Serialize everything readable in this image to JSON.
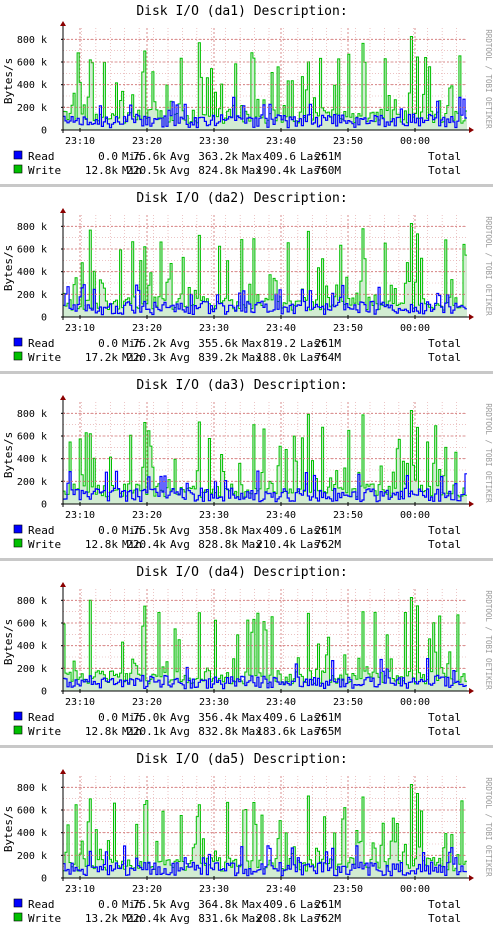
{
  "watermark": "RRDTOOL / TOBI OETIKER",
  "colors": {
    "read": "#0000ff",
    "write": "#00c000",
    "write_fill": "#d2ecd2",
    "grid_minor": "#e0a0a0",
    "grid_major": "#d07070",
    "axis": "#000000",
    "arrow": "#8b0000"
  },
  "chart_data": [
    {
      "type": "area",
      "title": "Disk I/O (da1) Description:",
      "ylabel": "Bytes/s",
      "ylim": [
        0,
        900000
      ],
      "yticks": [
        0,
        200000,
        400000,
        600000,
        800000
      ],
      "ytick_labels": [
        "0",
        "200 k",
        "400 k",
        "600 k",
        "800 k"
      ],
      "xtick_labels": [
        "23:10",
        "23:20",
        "23:30",
        "23:40",
        "23:50",
        "00:00"
      ],
      "series": [
        {
          "name": "Read",
          "legend": [
            "0.0",
            "Min",
            "75.6k",
            "Avg",
            "363.2k",
            "Max",
            "409.6",
            "Last",
            "261M",
            "Total"
          ]
        },
        {
          "name": "Write",
          "legend": [
            "12.8k",
            "Min",
            "220.5k",
            "Avg",
            "824.8k",
            "Max",
            "190.4k",
            "Last",
            "760M",
            "Total"
          ]
        }
      ]
    },
    {
      "type": "area",
      "title": "Disk I/O (da2) Description:",
      "ylabel": "Bytes/s",
      "ylim": [
        0,
        900000
      ],
      "yticks": [
        0,
        200000,
        400000,
        600000,
        800000
      ],
      "ytick_labels": [
        "0",
        "200 k",
        "400 k",
        "600 k",
        "800 k"
      ],
      "xtick_labels": [
        "23:10",
        "23:20",
        "23:30",
        "23:40",
        "23:50",
        "00:00"
      ],
      "series": [
        {
          "name": "Read",
          "legend": [
            "0.0",
            "Min",
            "75.2k",
            "Avg",
            "355.6k",
            "Max",
            "819.2",
            "Last",
            "261M",
            "Total"
          ]
        },
        {
          "name": "Write",
          "legend": [
            "17.2k",
            "Min",
            "220.3k",
            "Avg",
            "839.2k",
            "Max",
            "188.0k",
            "Last",
            "764M",
            "Total"
          ]
        }
      ]
    },
    {
      "type": "area",
      "title": "Disk I/O (da3) Description:",
      "ylabel": "Bytes/s",
      "ylim": [
        0,
        900000
      ],
      "yticks": [
        0,
        200000,
        400000,
        600000,
        800000
      ],
      "ytick_labels": [
        "0",
        "200 k",
        "400 k",
        "600 k",
        "800 k"
      ],
      "xtick_labels": [
        "23:10",
        "23:20",
        "23:30",
        "23:40",
        "23:50",
        "00:00"
      ],
      "series": [
        {
          "name": "Read",
          "legend": [
            "0.0",
            "Min",
            "75.5k",
            "Avg",
            "358.8k",
            "Max",
            "409.6",
            "Last",
            "261M",
            "Total"
          ]
        },
        {
          "name": "Write",
          "legend": [
            "12.8k",
            "Min",
            "220.4k",
            "Avg",
            "828.8k",
            "Max",
            "210.4k",
            "Last",
            "762M",
            "Total"
          ]
        }
      ]
    },
    {
      "type": "area",
      "title": "Disk I/O (da4) Description:",
      "ylabel": "Bytes/s",
      "ylim": [
        0,
        900000
      ],
      "yticks": [
        0,
        200000,
        400000,
        600000,
        800000
      ],
      "ytick_labels": [
        "0",
        "200 k",
        "400 k",
        "600 k",
        "800 k"
      ],
      "xtick_labels": [
        "23:10",
        "23:20",
        "23:30",
        "23:40",
        "23:50",
        "00:00"
      ],
      "series": [
        {
          "name": "Read",
          "legend": [
            "0.0",
            "Min",
            "75.0k",
            "Avg",
            "356.4k",
            "Max",
            "409.6",
            "Last",
            "261M",
            "Total"
          ]
        },
        {
          "name": "Write",
          "legend": [
            "12.8k",
            "Min",
            "220.1k",
            "Avg",
            "832.8k",
            "Max",
            "183.6k",
            "Last",
            "765M",
            "Total"
          ]
        }
      ]
    },
    {
      "type": "area",
      "title": "Disk I/O (da5) Description:",
      "ylabel": "Bytes/s",
      "ylim": [
        0,
        900000
      ],
      "yticks": [
        0,
        200000,
        400000,
        600000,
        800000
      ],
      "ytick_labels": [
        "0",
        "200 k",
        "400 k",
        "600 k",
        "800 k"
      ],
      "xtick_labels": [
        "23:10",
        "23:20",
        "23:30",
        "23:40",
        "23:50",
        "00:00"
      ],
      "series": [
        {
          "name": "Read",
          "legend": [
            "0.0",
            "Min",
            "75.5k",
            "Avg",
            "364.8k",
            "Max",
            "409.6",
            "Last",
            "261M",
            "Total"
          ]
        },
        {
          "name": "Write",
          "legend": [
            "13.2k",
            "Min",
            "220.4k",
            "Avg",
            "831.6k",
            "Max",
            "208.8k",
            "Last",
            "762M",
            "Total"
          ]
        }
      ]
    }
  ]
}
